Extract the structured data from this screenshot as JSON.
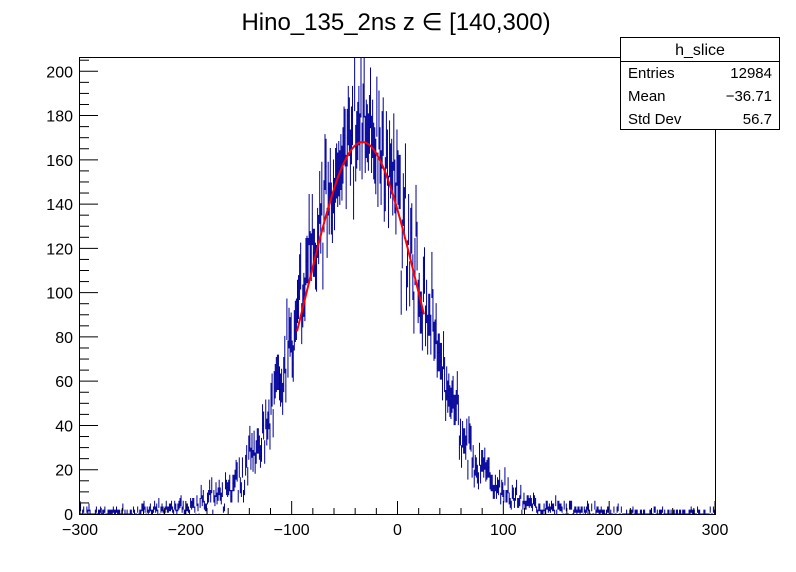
{
  "chart_data": {
    "type": "histogram",
    "title": "Hino_135_2ns z  ∈ [140,300)",
    "xlabel": "",
    "ylabel": "",
    "xlim": [
      -300,
      300
    ],
    "ylim": [
      0,
      206
    ],
    "x_ticks": [
      -300,
      -200,
      -100,
      0,
      100,
      200,
      300
    ],
    "y_ticks": [
      0,
      20,
      40,
      60,
      80,
      100,
      120,
      140,
      160,
      180,
      200
    ],
    "bins": 600,
    "histogram_color": "#000099",
    "fit_color": "#ff0000",
    "fit": {
      "function": "gaus",
      "constant": 168,
      "mean": -33,
      "sigma": 52,
      "range": [
        -95,
        25
      ]
    },
    "stats_box": {
      "name": "h_slice",
      "entries_label": "Entries",
      "entries_value": "12984",
      "mean_label": "Mean",
      "mean_value": "−36.71",
      "stddev_label": "Std Dev",
      "stddev_value": "56.7"
    }
  }
}
